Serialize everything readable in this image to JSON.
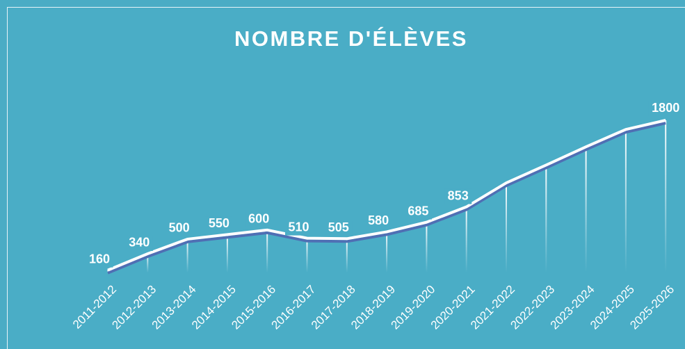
{
  "chart_data": {
    "type": "line",
    "title": "NOMBRE D'ÉLÈVES",
    "categories": [
      "2011-2012",
      "2012-2013",
      "2013-2014",
      "2014-2015",
      "2015-2016",
      "2016-2017",
      "2017-2018",
      "2018-2019",
      "2019-2020",
      "2020-2021",
      "2021-2022",
      "2022-2023",
      "2023-2024",
      "2024-2025",
      "2025-2026"
    ],
    "values": [
      160,
      340,
      500,
      550,
      600,
      510,
      505,
      580,
      685,
      853,
      1115,
      1310,
      1510,
      1700,
      1800
    ],
    "value_labels": [
      "160",
      "340",
      "500",
      "550",
      "600",
      "510",
      "505",
      "580",
      "685",
      "853",
      null,
      null,
      null,
      null,
      "1800"
    ],
    "color": "#ffffff",
    "ylim": [
      0,
      2000
    ]
  }
}
